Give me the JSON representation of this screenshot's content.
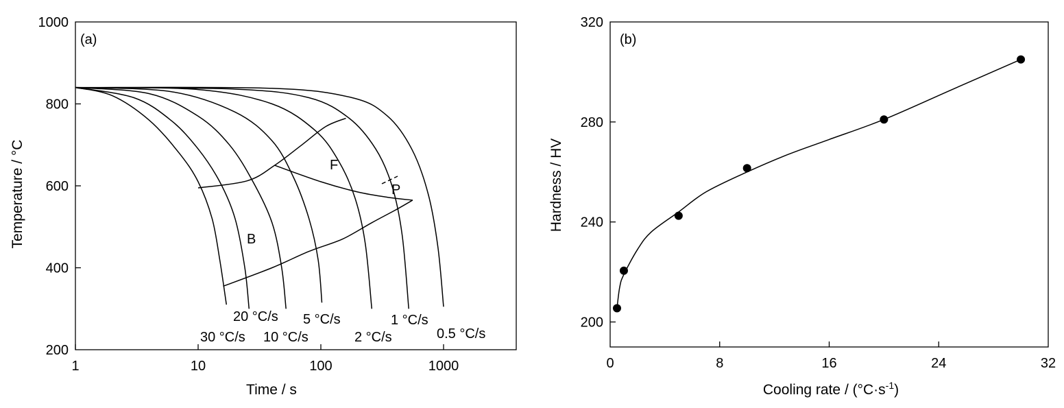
{
  "chart_data": [
    {
      "type": "line",
      "panel_label": "(a)",
      "xlabel": "Time / s",
      "ylabel": "Temperature / °C",
      "x_scale": "log",
      "xlim": [
        1,
        5000
      ],
      "ylim": [
        200,
        1000
      ],
      "x_ticks": [
        1,
        10,
        100,
        1000
      ],
      "x_tick_labels": [
        "1",
        "10",
        "100",
        "1000"
      ],
      "y_ticks": [
        200,
        400,
        600,
        800,
        1000
      ],
      "y_tick_labels": [
        "200",
        "400",
        "600",
        "800",
        "1000"
      ],
      "start_temperature": 840,
      "cooling_curves": [
        {
          "label": "30 °C/s",
          "points": [
            [
              1,
              840
            ],
            [
              2,
              820
            ],
            [
              4,
              760
            ],
            [
              7,
              680
            ],
            [
              10,
              610
            ],
            [
              13,
              520
            ],
            [
              15,
              420
            ],
            [
              17,
              310
            ]
          ]
        },
        {
          "label": "20 °C/s",
          "points": [
            [
              1,
              840
            ],
            [
              3,
              815
            ],
            [
              6,
              760
            ],
            [
              10,
              690
            ],
            [
              15,
              610
            ],
            [
              20,
              520
            ],
            [
              24,
              400
            ],
            [
              26,
              300
            ]
          ]
        },
        {
          "label": "10 °C/s",
          "points": [
            [
              1,
              840
            ],
            [
              4,
              825
            ],
            [
              10,
              770
            ],
            [
              18,
              700
            ],
            [
              28,
              610
            ],
            [
              40,
              510
            ],
            [
              48,
              400
            ],
            [
              52,
              300
            ]
          ]
        },
        {
          "label": "5 °C/s",
          "points": [
            [
              1,
              840
            ],
            [
              6,
              830
            ],
            [
              20,
              780
            ],
            [
              40,
              710
            ],
            [
              60,
              620
            ],
            [
              80,
              520
            ],
            [
              95,
              420
            ],
            [
              102,
              315
            ]
          ]
        },
        {
          "label": "2 °C/s",
          "points": [
            [
              1,
              840
            ],
            [
              10,
              835
            ],
            [
              40,
              800
            ],
            [
              90,
              735
            ],
            [
              140,
              660
            ],
            [
              190,
              570
            ],
            [
              230,
              460
            ],
            [
              260,
              300
            ]
          ]
        },
        {
          "label": "1 °C/s",
          "points": [
            [
              1,
              840
            ],
            [
              20,
              836
            ],
            [
              80,
              815
            ],
            [
              170,
              765
            ],
            [
              280,
              690
            ],
            [
              380,
              600
            ],
            [
              460,
              480
            ],
            [
              520,
              300
            ]
          ]
        },
        {
          "label": "0.5 °C/s",
          "points": [
            [
              1,
              840
            ],
            [
              40,
              838
            ],
            [
              180,
              815
            ],
            [
              350,
              770
            ],
            [
              550,
              690
            ],
            [
              750,
              580
            ],
            [
              900,
              450
            ],
            [
              1000,
              305
            ]
          ]
        }
      ],
      "transformation_boundaries": [
        {
          "name": "F-start",
          "points": [
            [
              10,
              595
            ],
            [
              25,
              612
            ],
            [
              42,
              650
            ],
            [
              70,
              700
            ],
            [
              110,
              745
            ],
            [
              160,
              765
            ]
          ]
        },
        {
          "name": "F-finish",
          "points": [
            [
              42,
              650
            ],
            [
              100,
              610
            ],
            [
              200,
              585
            ],
            [
              350,
              572
            ],
            [
              560,
              565
            ]
          ]
        },
        {
          "name": "B-finish",
          "points": [
            [
              16,
              355
            ],
            [
              40,
              400
            ],
            [
              80,
              440
            ],
            [
              150,
              470
            ],
            [
              260,
              510
            ],
            [
              400,
              540
            ],
            [
              560,
              565
            ]
          ]
        }
      ],
      "region_labels": [
        "F",
        "P",
        "B"
      ],
      "curve_labels": [
        "20 °C/s",
        "5 °C/s",
        "1 °C/s",
        "30 °C/s",
        "10 °C/s",
        "2 °C/s",
        "0.5 °C/s"
      ]
    },
    {
      "type": "scatter",
      "panel_label": "(b)",
      "xlabel": "Cooling rate / (°C·s",
      "xlabel_sup": "-1",
      "xlabel_close": ")",
      "ylabel": "Hardness / HV",
      "xlim": [
        0,
        32
      ],
      "ylim": [
        190,
        320
      ],
      "x_ticks": [
        0,
        8,
        16,
        24,
        32
      ],
      "x_tick_labels": [
        "0",
        "8",
        "16",
        "24",
        "32"
      ],
      "y_ticks": [
        200,
        240,
        280,
        320
      ],
      "y_tick_labels": [
        "200",
        "240",
        "280",
        "320"
      ],
      "x": [
        0.5,
        1,
        5,
        10,
        20,
        30
      ],
      "y": [
        205.5,
        220.5,
        242.5,
        261.5,
        281,
        305
      ],
      "fit_line": {
        "x": [
          0.5,
          0.7,
          1,
          2,
          3,
          5,
          7,
          10,
          13,
          16,
          20,
          25,
          30
        ],
        "y": [
          205.5,
          214,
          219,
          229,
          236,
          244,
          252,
          260,
          267,
          273,
          281,
          293,
          305
        ]
      }
    }
  ]
}
